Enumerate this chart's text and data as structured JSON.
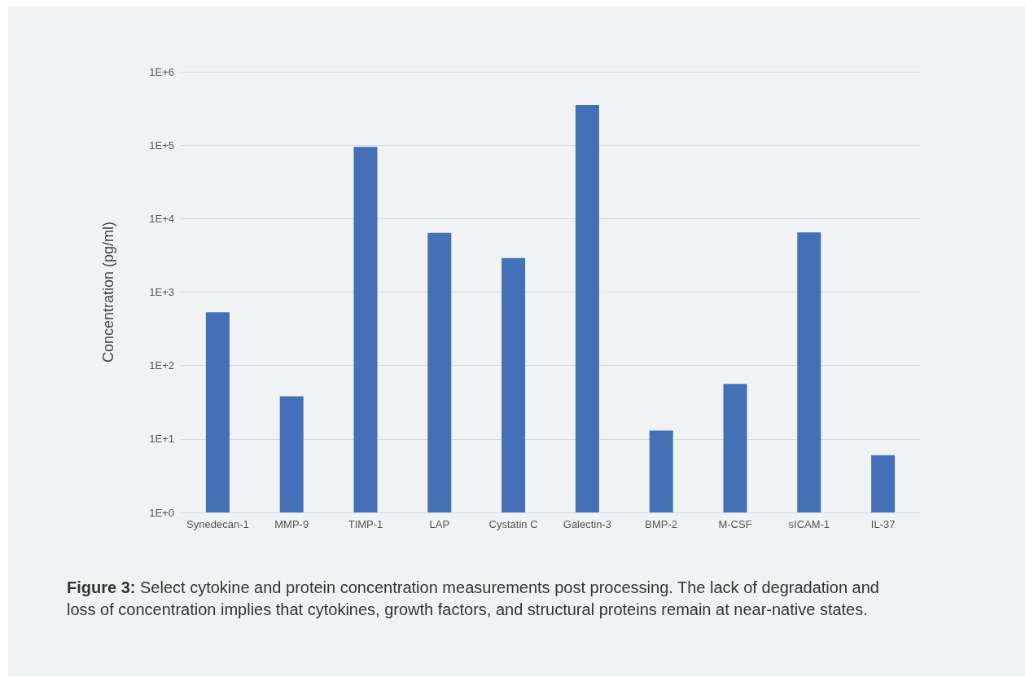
{
  "chart_data": {
    "type": "bar",
    "ylabel": "Concentration (pg/ml)",
    "categories": [
      "Synedecan-1",
      "MMP-9",
      "TIMP-1",
      "LAP",
      "Cystatin C",
      "Galectin-3",
      "BMP-2",
      "M-CSF",
      "sICAM-1",
      "IL-37"
    ],
    "values": [
      530,
      38,
      95000,
      6400,
      2900,
      350000,
      13,
      56,
      6500,
      6
    ],
    "color": "#4470b8",
    "log": true,
    "ylim": [
      1,
      1000000
    ],
    "yticks": [
      {
        "value": 1,
        "label": "1E+0"
      },
      {
        "value": 10,
        "label": "1E+1"
      },
      {
        "value": 100,
        "label": "1E+2"
      },
      {
        "value": 1000,
        "label": "1E+3"
      },
      {
        "value": 10000,
        "label": "1E+4"
      },
      {
        "value": 100000,
        "label": "1E+5"
      },
      {
        "value": 1000000,
        "label": "1E+6"
      }
    ],
    "grid": "y",
    "annotations": [
      "Figure 3: Select cytokine and protein concentration measurements post processing. The lack of degradation and loss of concentration implies that cytokines, growth factors, and structural proteins remain at near-native states."
    ]
  }
}
